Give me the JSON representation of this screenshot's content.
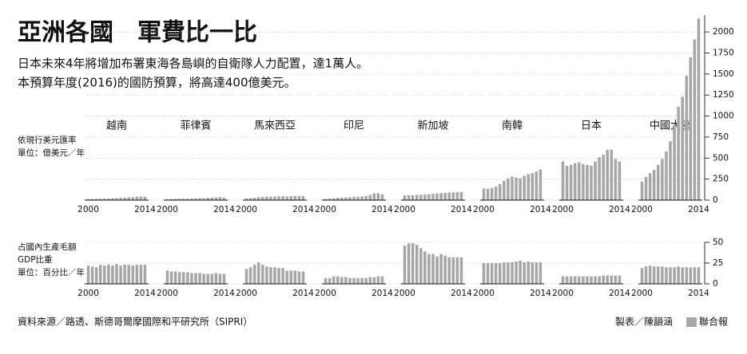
{
  "header": {
    "title": "亞洲各國　軍費比一比",
    "subtitle": [
      "日本未來4年將增加布署東海各島嶼的自衛隊人力配置，達1萬人。",
      "本預算年度(2016)的國防預算，將高達400億美元。"
    ]
  },
  "chart_data": [
    {
      "type": "bar",
      "y_label": [
        "依現行美元匯率",
        "單位：億美元／年"
      ],
      "x": [
        2000,
        2001,
        2002,
        2003,
        2004,
        2005,
        2006,
        2007,
        2008,
        2009,
        2010,
        2011,
        2012,
        2013,
        2014
      ],
      "xticks": [
        2000,
        2014
      ],
      "ylim": [
        0,
        2200
      ],
      "yticks": [
        0,
        250,
        500,
        750,
        1000,
        1250,
        1500,
        1750,
        2000
      ],
      "grid": true,
      "series": [
        {
          "name": "越南",
          "color": "#a6a6a6",
          "values": [
            12,
            13,
            15,
            17,
            18,
            20,
            22,
            25,
            28,
            30,
            32,
            35,
            38,
            42,
            40
          ]
        },
        {
          "name": "菲律賓",
          "color": "#a6a6a6",
          "values": [
            12,
            12,
            15,
            17,
            18,
            18,
            20,
            22,
            25,
            25,
            28,
            30,
            33,
            35,
            30
          ]
        },
        {
          "name": "馬來西亞",
          "color": "#a6a6a6",
          "values": [
            20,
            25,
            28,
            35,
            38,
            40,
            40,
            42,
            45,
            45,
            42,
            47,
            50,
            50,
            50
          ]
        },
        {
          "name": "印尼",
          "color": "#a6a6a6",
          "values": [
            15,
            20,
            22,
            28,
            30,
            32,
            35,
            38,
            40,
            42,
            50,
            62,
            80,
            82,
            70
          ]
        },
        {
          "name": "新加坡",
          "color": "#a6a6a6",
          "values": [
            55,
            58,
            60,
            62,
            65,
            68,
            70,
            75,
            80,
            82,
            85,
            90,
            92,
            95,
            97
          ]
        },
        {
          "name": "南韓",
          "color": "#a6a6a6",
          "values": [
            140,
            135,
            145,
            160,
            190,
            230,
            260,
            280,
            270,
            260,
            290,
            310,
            320,
            340,
            365
          ]
        },
        {
          "name": "日本",
          "color": "#a6a6a6",
          "values": [
            460,
            410,
            420,
            440,
            450,
            430,
            420,
            410,
            460,
            510,
            540,
            600,
            600,
            490,
            460
          ]
        },
        {
          "name": "中國大陸",
          "color": "#a6a6a6",
          "values": [
            220,
            275,
            320,
            360,
            420,
            490,
            580,
            700,
            900,
            1110,
            1230,
            1480,
            1700,
            1910,
            2160
          ]
        }
      ]
    },
    {
      "type": "bar",
      "y_label": [
        "占國內生產毛額",
        "GDP比重",
        "單位：百分比／年"
      ],
      "x": [
        2000,
        2001,
        2002,
        2003,
        2004,
        2005,
        2006,
        2007,
        2008,
        2009,
        2010,
        2011,
        2012,
        2013,
        2014
      ],
      "xticks": [
        2000,
        2014
      ],
      "ylim": [
        0,
        50
      ],
      "yticks": [
        0,
        25,
        50
      ],
      "grid": true,
      "series": [
        {
          "color": "#a6a6a6",
          "values": [
            22,
            21,
            20,
            23,
            22,
            23,
            22,
            24,
            22,
            23,
            23,
            22,
            23,
            23,
            23
          ]
        },
        {
          "color": "#a6a6a6",
          "values": [
            16,
            15,
            15,
            14,
            14,
            14,
            13,
            13,
            13,
            12,
            12,
            12,
            13,
            12,
            12
          ]
        },
        {
          "color": "#a6a6a6",
          "values": [
            18,
            20,
            23,
            26,
            23,
            21,
            20,
            20,
            19,
            19,
            16,
            16,
            16,
            15,
            15
          ]
        },
        {
          "color": "#a6a6a6",
          "values": [
            7,
            7,
            9,
            9,
            8,
            8,
            7,
            7,
            7,
            7,
            7,
            8,
            8,
            9,
            9
          ]
        },
        {
          "color": "#a6a6a6",
          "values": [
            46,
            49,
            49,
            47,
            43,
            39,
            36,
            36,
            33,
            36,
            34,
            32,
            32,
            32,
            32
          ]
        },
        {
          "color": "#a6a6a6",
          "values": [
            25,
            25,
            25,
            25,
            25,
            26,
            26,
            26,
            27,
            28,
            26,
            27,
            26,
            26,
            26
          ]
        },
        {
          "color": "#a6a6a6",
          "values": [
            9,
            9,
            9,
            9,
            9,
            9,
            9,
            9,
            9,
            9,
            10,
            10,
            10,
            10,
            10
          ]
        },
        {
          "color": "#a6a6a6",
          "values": [
            19,
            21,
            22,
            21,
            21,
            21,
            20,
            20,
            20,
            21,
            20,
            20,
            20,
            20,
            20
          ]
        }
      ]
    }
  ],
  "footer": {
    "source": "資料來源／路透、斯德哥爾摩國際和平研究所（SIPRI）",
    "credit": "製表／陳韻涵",
    "brand": "聯合報"
  }
}
